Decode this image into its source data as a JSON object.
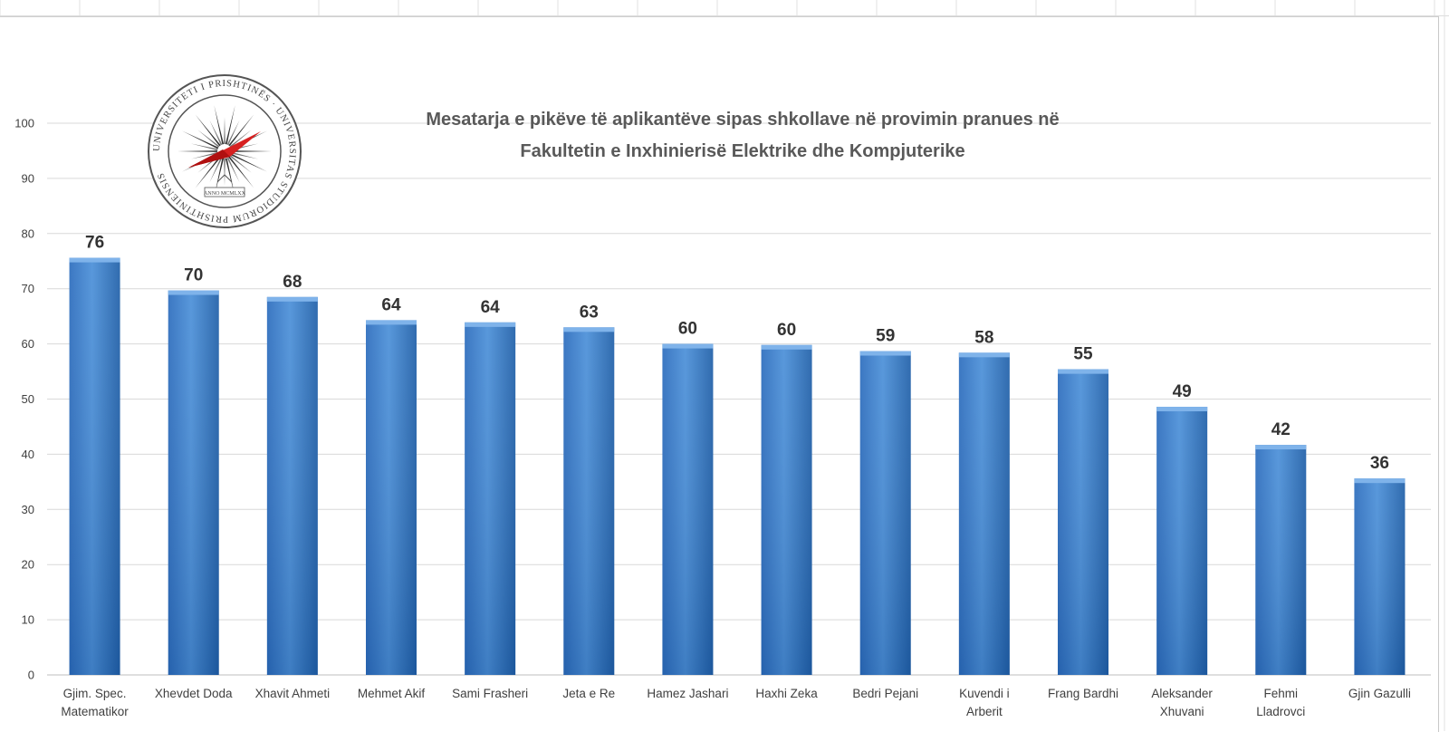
{
  "chart_data": {
    "type": "bar",
    "title": "Mesatarja e pikëve të aplikantëve sipas shkollave në provimin pranues në Fakultetin e Inxhinierisë Elektrike dhe Kompjuterike",
    "title_lines": [
      "Mesatarja e pikëve të aplikantëve sipas shkollave në provimin pranues në",
      "Fakultetin e Inxhinierisë Elektrike dhe Kompjuterike"
    ],
    "categories": [
      "Gjim. Spec. Matematikor",
      "Xhevdet Doda",
      "Xhavit Ahmeti",
      "Mehmet Akif",
      "Sami Frasheri",
      "Jeta e Re",
      "Hamez Jashari",
      "Haxhi Zeka",
      "Bedri Pejani",
      "Kuvendi i Arberit",
      "Frang Bardhi",
      "Aleksander Xhuvani",
      "Fehmi Lladrovci",
      "Gjin Gazulli"
    ],
    "category_label_lines": [
      [
        "Gjim. Spec.",
        "Matematikor"
      ],
      [
        "Xhevdet Doda"
      ],
      [
        "Xhavit Ahmeti"
      ],
      [
        "Mehmet Akif"
      ],
      [
        "Sami Frasheri"
      ],
      [
        "Jeta e Re"
      ],
      [
        "Hamez Jashari"
      ],
      [
        "Haxhi Zeka"
      ],
      [
        "Bedri Pejani"
      ],
      [
        "Kuvendi i",
        "Arberit"
      ],
      [
        "Frang Bardhi"
      ],
      [
        "Aleksander",
        "Xhuvani"
      ],
      [
        "Fehmi",
        "Lladrovci"
      ],
      [
        "Gjin Gazulli"
      ]
    ],
    "values": [
      75.6,
      69.7,
      68.5,
      64.3,
      63.9,
      63.0,
      60.0,
      59.8,
      58.7,
      58.4,
      55.4,
      48.6,
      41.7,
      35.6
    ],
    "data_labels": [
      "76",
      "70",
      "68",
      "64",
      "64",
      "63",
      "60",
      "60",
      "59",
      "58",
      "55",
      "49",
      "42",
      "36"
    ],
    "yticks": [
      "0",
      "10",
      "20",
      "30",
      "40",
      "50",
      "60",
      "70",
      "80",
      "90",
      "100"
    ],
    "ylim": [
      0,
      100
    ],
    "grid": true,
    "legend": "none",
    "colors": {
      "bar_light": "#4a8fd8",
      "bar_dark": "#1f5fa8",
      "bar_top": "#7fb3ea",
      "grid": "#d9d9d9",
      "text": "#404040"
    }
  },
  "logo": {
    "ring_text": "UNIVERSITETI I PRISHTINËS · UNIVERSITAS STUDIORUM PRISHTINIENSIS",
    "year_text": "ANNO MCMLXX"
  }
}
